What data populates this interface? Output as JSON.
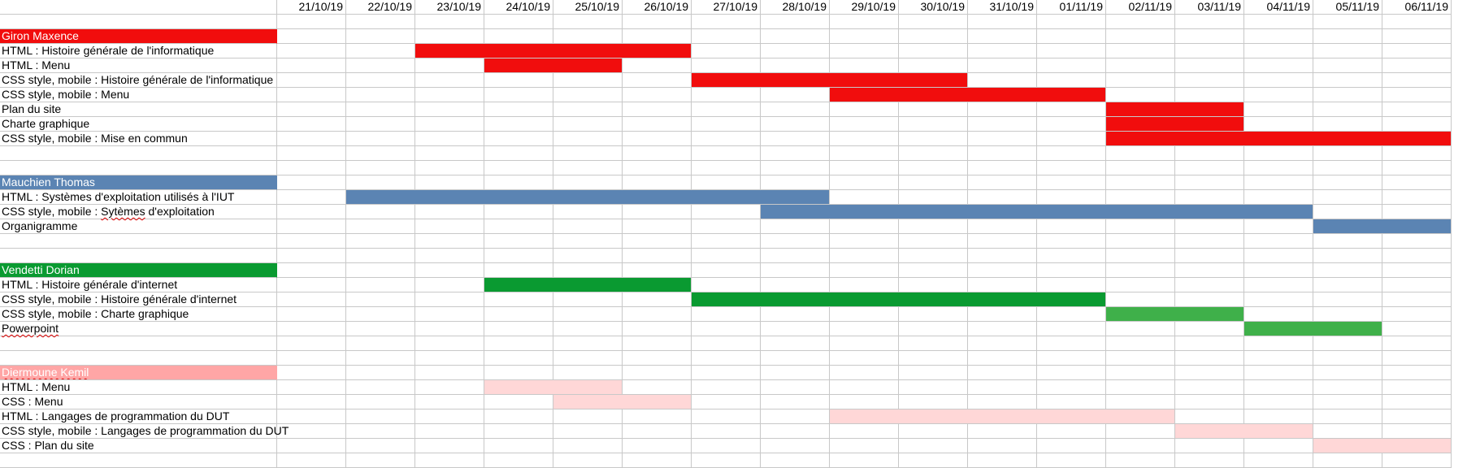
{
  "dates": [
    "21/10/19",
    "22/10/19",
    "23/10/19",
    "24/10/19",
    "25/10/19",
    "26/10/19",
    "27/10/19",
    "28/10/19",
    "29/10/19",
    "30/10/19",
    "31/10/19",
    "01/11/19",
    "02/11/19",
    "03/11/19",
    "04/11/19",
    "05/11/19",
    "06/11/19"
  ],
  "colors": {
    "grid": "#c8c8c8",
    "giron": "#f10d0d",
    "mauchien": "#5b84b3",
    "vendetti_dark": "#0a9a31",
    "vendetti_light": "#3fb04a",
    "diermoune_header": "#ffa6a6",
    "diermoune_bar": "#ffd7d7"
  },
  "rows": [
    {
      "type": "blank"
    },
    {
      "type": "owner",
      "label": "Giron Maxence",
      "color": "#f10d0d"
    },
    {
      "type": "task",
      "label": "HTML : Histoire générale de l'informatique",
      "start": 2,
      "end": 6,
      "color": "#f10d0d"
    },
    {
      "type": "task",
      "label": "HTML : Menu",
      "start": 3,
      "end": 5,
      "color": "#f10d0d"
    },
    {
      "type": "task",
      "label": "CSS style, mobile : Histoire générale de l'informatique",
      "start": 6,
      "end": 10,
      "color": "#f10d0d"
    },
    {
      "type": "task",
      "label": "CSS style, mobile : Menu",
      "start": 8,
      "end": 12,
      "color": "#f10d0d"
    },
    {
      "type": "task",
      "label": "Plan du site",
      "start": 12,
      "end": 14,
      "color": "#f10d0d"
    },
    {
      "type": "task",
      "label": "Charte graphique",
      "start": 12,
      "end": 14,
      "color": "#f10d0d"
    },
    {
      "type": "task",
      "label": "CSS style, mobile : Mise en commun",
      "start": 12,
      "end": 17,
      "color": "#f10d0d"
    },
    {
      "type": "blank"
    },
    {
      "type": "blank"
    },
    {
      "type": "owner",
      "label": "Mauchien Thomas",
      "color": "#5b84b3"
    },
    {
      "type": "task",
      "label": "HTML : Systèmes d'exploitation utilisés à l'IUT",
      "start": 1,
      "end": 8,
      "color": "#5b84b3"
    },
    {
      "type": "task",
      "label": "CSS style, mobile : Sytèmes d'exploitation",
      "start": 7,
      "end": 15,
      "color": "#5b84b3",
      "wavy": "Sytèmes"
    },
    {
      "type": "task",
      "label": "Organigramme",
      "start": 15,
      "end": 17,
      "color": "#5b84b3"
    },
    {
      "type": "blank"
    },
    {
      "type": "blank"
    },
    {
      "type": "owner",
      "label": "Vendetti Dorian",
      "color": "#0a9a31"
    },
    {
      "type": "task",
      "label": "HTML : Histoire générale d'internet",
      "start": 3,
      "end": 6,
      "color": "#0a9a31"
    },
    {
      "type": "task",
      "label": "CSS style, mobile : Histoire générale d'internet",
      "start": 6,
      "end": 12,
      "color": "#0a9a31"
    },
    {
      "type": "task",
      "label": "CSS style, mobile : Charte graphique",
      "start": 12,
      "end": 14,
      "color": "#3fb04a"
    },
    {
      "type": "task",
      "label": "Powerpoint",
      "start": 14,
      "end": 16,
      "color": "#3fb04a",
      "wavy": "Powerpoint"
    },
    {
      "type": "blank"
    },
    {
      "type": "blank"
    },
    {
      "type": "owner",
      "label": "Diermoune Kemil",
      "color": "#ffa6a6"
    },
    {
      "type": "task",
      "label": "HTML : Menu",
      "start": 3,
      "end": 5,
      "color": "#ffd7d7"
    },
    {
      "type": "task",
      "label": "CSS : Menu",
      "start": 4,
      "end": 6,
      "color": "#ffd7d7"
    },
    {
      "type": "task",
      "label": "HTML : Langages de programmation du DUT",
      "start": 8,
      "end": 13,
      "color": "#ffd7d7"
    },
    {
      "type": "task",
      "label": "CSS style, mobile : Langages de programmation du DUT",
      "start": 13,
      "end": 15,
      "color": "#ffd7d7"
    },
    {
      "type": "task",
      "label": "CSS : Plan du site",
      "start": 15,
      "end": 17,
      "color": "#ffd7d7"
    },
    {
      "type": "blank"
    }
  ]
}
